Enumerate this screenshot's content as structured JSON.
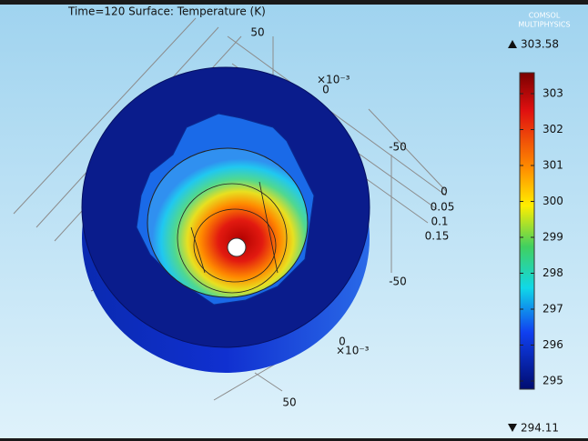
{
  "header": {
    "title": "Time=120  Surface: Temperature (K)",
    "logo": [
      "COMSOL",
      "MULTIPHYSICS"
    ]
  },
  "colorbar": {
    "max": "303.58",
    "min": "294.11",
    "ticks": [
      "303",
      "302",
      "301",
      "300",
      "299",
      "298",
      "297",
      "296",
      "295"
    ]
  },
  "axes": {
    "top_value": "50",
    "upper_multiplier": "×10⁻³",
    "upper_zero": "0",
    "right_upper": "-50",
    "depth_ticks": [
      "0",
      "0.05",
      "0.1",
      "0.15"
    ],
    "right_lower": "-50",
    "lower_zero": "0",
    "lower_multiplier": "×10⁻³",
    "bottom_value": "50"
  }
}
